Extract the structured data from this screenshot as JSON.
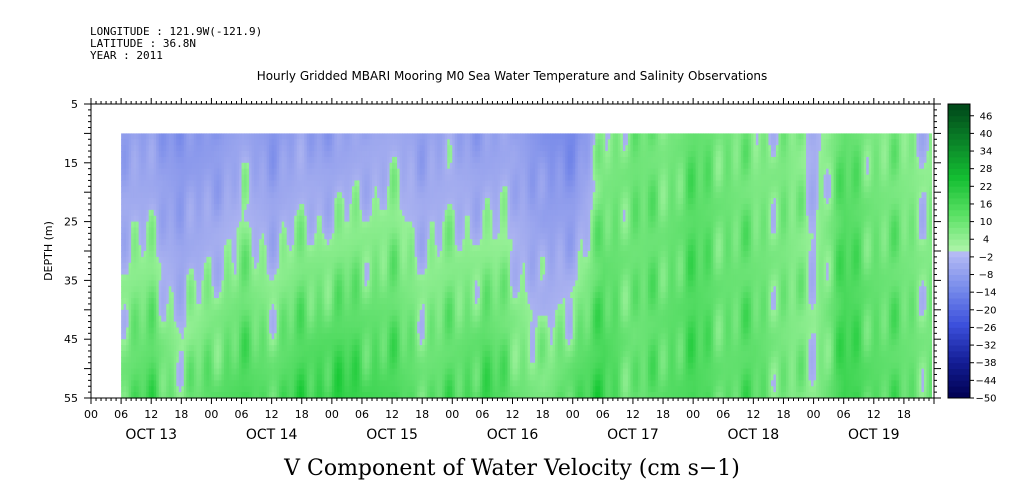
{
  "header": {
    "longitude": "LONGITUDE : 121.9W(-121.9)",
    "latitude": "LATITUDE : 36.8N",
    "year": "YEAR : 2011"
  },
  "chart_data": {
    "type": "heatmap",
    "title": "Hourly Gridded MBARI Mooring M0 Sea Water Temperature and Salinity Observations",
    "variable_label": "V Component of Water Velocity (cm s−1)",
    "ylabel": "DEPTH (m)",
    "ylim": [
      5,
      55
    ],
    "yticks": [
      5,
      15,
      25,
      35,
      45,
      55
    ],
    "data_depth_range": [
      10,
      55
    ],
    "time_range_hours": [
      0,
      168
    ],
    "data_start_hour": 6,
    "hour_tick_labels": [
      "00",
      "06",
      "12",
      "18"
    ],
    "day_labels": [
      "OCT 13",
      "OCT 14",
      "OCT 15",
      "OCT 16",
      "OCT 17",
      "OCT 18",
      "OCT 19"
    ],
    "colorbar": {
      "min": -50,
      "max": 50,
      "step": 2,
      "tick_labels": [
        "46",
        "40",
        "34",
        "28",
        "22",
        "16",
        "10",
        "4",
        "-2",
        "-8",
        "-14",
        "-20",
        "-26",
        "-32",
        "-38",
        "-44",
        "-50"
      ]
    },
    "field": {
      "description_days": "approximate mean V velocity (cm/s) per time column; negative = blue, positive = green",
      "column_hours": [
        6,
        12,
        18,
        24,
        30,
        36,
        42,
        48,
        54,
        60,
        66,
        72,
        78,
        84,
        90,
        96,
        102,
        108,
        114,
        120,
        126,
        132,
        138,
        144,
        150,
        156,
        162,
        166
      ],
      "surface_values": [
        -8,
        -10,
        -14,
        -12,
        -6,
        -12,
        -8,
        -10,
        -6,
        -4,
        -8,
        -6,
        -10,
        -6,
        -16,
        -18,
        2,
        6,
        4,
        8,
        6,
        2,
        4,
        -2,
        8,
        4,
        2,
        0
      ],
      "bottom_values": [
        8,
        12,
        4,
        10,
        12,
        10,
        14,
        16,
        14,
        12,
        8,
        10,
        14,
        8,
        4,
        12,
        14,
        6,
        10,
        12,
        8,
        10,
        4,
        2,
        14,
        10,
        8,
        6
      ]
    }
  }
}
